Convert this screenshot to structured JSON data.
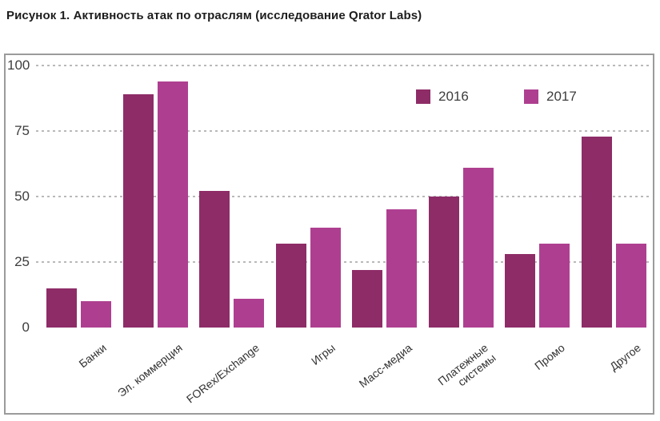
{
  "title": "Рисунок 1. Активность атак по отраслям (исследование Qrator Labs)",
  "colors": {
    "series_2016": "#8e2c67",
    "series_2017": "#ae3f90",
    "grid": "#b9b9b9",
    "panel_border": "#9b9b9b",
    "tick_text": "#3d3d3d"
  },
  "legend": {
    "items": [
      {
        "label": "2016",
        "color": "#8e2c67"
      },
      {
        "label": "2017",
        "color": "#ae3f90"
      }
    ],
    "position": "top-right"
  },
  "chart_data": {
    "type": "bar",
    "title": "Рисунок 1. Активность атак по отраслям (исследование Qrator Labs)",
    "categories": [
      "Банки",
      "Эл. коммерция",
      "FORex/Exchange",
      "Игры",
      "Масс-медиа",
      "Платежные\nсистемы",
      "Промо",
      "Другое"
    ],
    "series": [
      {
        "name": "2016",
        "color": "#8e2c67",
        "values": [
          15,
          89,
          52,
          32,
          22,
          50,
          28,
          73
        ]
      },
      {
        "name": "2017",
        "color": "#ae3f90",
        "values": [
          10,
          94,
          11,
          38,
          45,
          61,
          32,
          32
        ]
      }
    ],
    "xlabel": "",
    "ylabel": "",
    "ylim": [
      0,
      100
    ],
    "yticks": [
      0,
      25,
      50,
      75,
      100
    ],
    "grid": true,
    "grid_style": "dashed",
    "legend_position": "top-right"
  }
}
